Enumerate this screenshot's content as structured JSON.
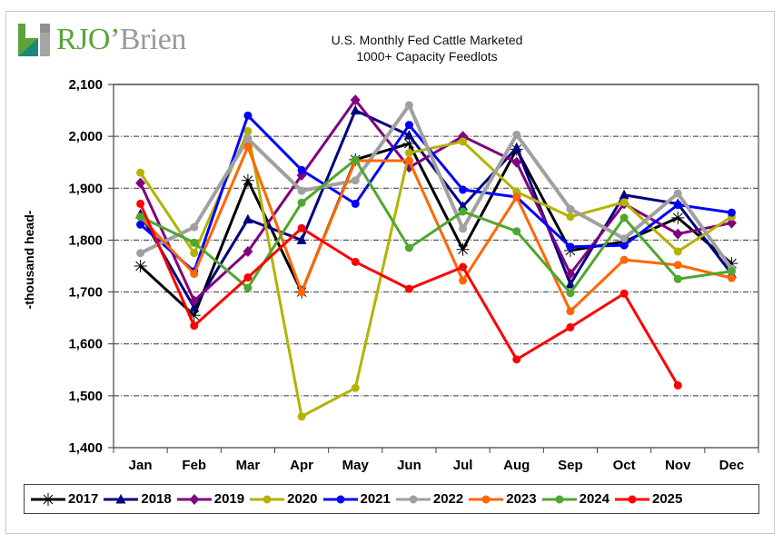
{
  "logo": {
    "part1": "RJO",
    "apostrophe": "’",
    "part2": "Brien"
  },
  "chart_data": {
    "type": "line",
    "title": "U.S. Monthly Fed Cattle Marketed",
    "subtitle": "1000+ Capacity Feedlots",
    "xlabel": "",
    "ylabel": "-thousand head-",
    "ylim": [
      1400,
      2100
    ],
    "yticks": [
      1400,
      1500,
      1600,
      1700,
      1800,
      1900,
      2000,
      2100
    ],
    "ytick_labels": [
      "1,400",
      "1,500",
      "1,600",
      "1,700",
      "1,800",
      "1,900",
      "2,000",
      "2,100"
    ],
    "grid": "horizontal-dashdot",
    "legend_position": "bottom",
    "categories": [
      "Jan",
      "Feb",
      "Mar",
      "Apr",
      "May",
      "Jun",
      "Jul",
      "Aug",
      "Sep",
      "Oct",
      "Nov",
      "Dec"
    ],
    "series": [
      {
        "name": "2017",
        "color": "#000000",
        "marker": "star",
        "values": [
          1750,
          1655,
          1915,
          1700,
          1955,
          1986,
          1782,
          1975,
          1780,
          1797,
          1843,
          1755
        ]
      },
      {
        "name": "2018",
        "color": "#000080",
        "marker": "triangle",
        "values": [
          1850,
          1670,
          1840,
          1800,
          2050,
          2002,
          1865,
          1978,
          1715,
          1887,
          1870,
          1735
        ]
      },
      {
        "name": "2019",
        "color": "#800080",
        "marker": "diamond",
        "values": [
          1910,
          1683,
          1778,
          1925,
          2070,
          1940,
          2000,
          1950,
          1735,
          1870,
          1812,
          1833
        ]
      },
      {
        "name": "2020",
        "color": "#b3b300",
        "marker": "circle",
        "values": [
          1930,
          1775,
          2010,
          1460,
          1515,
          1968,
          1990,
          1893,
          1845,
          1873,
          1778,
          1845
        ]
      },
      {
        "name": "2021",
        "color": "#0000ff",
        "marker": "circle",
        "values": [
          1830,
          1740,
          2040,
          1935,
          1870,
          2022,
          1897,
          1883,
          1787,
          1790,
          1868,
          1853
        ]
      },
      {
        "name": "2022",
        "color": "#a0a0a0",
        "marker": "circle",
        "values": [
          1775,
          1825,
          1995,
          1895,
          1915,
          2060,
          1822,
          2003,
          1860,
          1803,
          1890,
          1745
        ]
      },
      {
        "name": "2023",
        "color": "#ff6600",
        "marker": "circle",
        "values": [
          1845,
          1735,
          1980,
          1700,
          1953,
          1953,
          1722,
          1883,
          1663,
          1762,
          1752,
          1727
        ]
      },
      {
        "name": "2024",
        "color": "#4ea72e",
        "marker": "circle",
        "values": [
          1845,
          1795,
          1708,
          1872,
          1955,
          1785,
          1855,
          1817,
          1698,
          1843,
          1725,
          1740
        ]
      },
      {
        "name": "2025",
        "color": "#ff0000",
        "marker": "circle",
        "values": [
          1870,
          1635,
          1728,
          1823,
          1758,
          1706,
          1748,
          1570,
          1632,
          1697,
          1520,
          null
        ]
      }
    ]
  }
}
